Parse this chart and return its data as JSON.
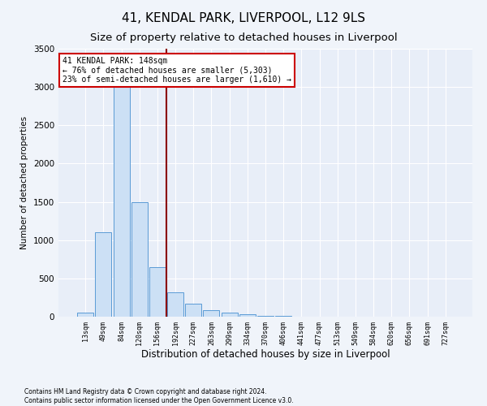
{
  "title": "41, KENDAL PARK, LIVERPOOL, L12 9LS",
  "subtitle": "Size of property relative to detached houses in Liverpool",
  "xlabel": "Distribution of detached houses by size in Liverpool",
  "ylabel": "Number of detached properties",
  "footnote": "Contains HM Land Registry data © Crown copyright and database right 2024.\nContains public sector information licensed under the Open Government Licence v3.0.",
  "categories": [
    "13sqm",
    "49sqm",
    "84sqm",
    "120sqm",
    "156sqm",
    "192sqm",
    "227sqm",
    "263sqm",
    "299sqm",
    "334sqm",
    "370sqm",
    "406sqm",
    "441sqm",
    "477sqm",
    "513sqm",
    "549sqm",
    "584sqm",
    "620sqm",
    "656sqm",
    "691sqm",
    "727sqm"
  ],
  "values": [
    50,
    1100,
    3050,
    1500,
    650,
    320,
    175,
    90,
    55,
    35,
    15,
    8,
    4,
    2,
    1,
    1,
    0.5,
    0.5,
    0.5,
    0.5,
    0.5
  ],
  "bar_color": "#cce0f5",
  "bar_edge_color": "#5b9bd5",
  "vline_x": 4.5,
  "vline_color": "#8b0000",
  "annotation_text": "41 KENDAL PARK: 148sqm\n← 76% of detached houses are smaller (5,303)\n23% of semi-detached houses are larger (1,610) →",
  "annotation_box_color": "#ffffff",
  "annotation_box_edge": "#cc0000",
  "ylim": [
    0,
    3500
  ],
  "yticks": [
    0,
    500,
    1000,
    1500,
    2000,
    2500,
    3000,
    3500
  ],
  "bg_color": "#f0f4fa",
  "plot_bg_color": "#e8eef8",
  "title_fontsize": 11,
  "subtitle_fontsize": 9.5
}
